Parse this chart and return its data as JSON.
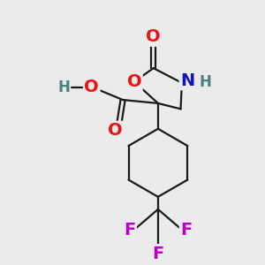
{
  "bg_color": "#ebebeb",
  "bond_color": "#1a1a1a",
  "bond_width": 1.6,
  "atom_colors": {
    "O": "#ee1111",
    "N": "#1111cc",
    "F": "#bb00bb",
    "H": "#4a8080"
  },
  "font_size": 14,
  "font_size_h": 12
}
